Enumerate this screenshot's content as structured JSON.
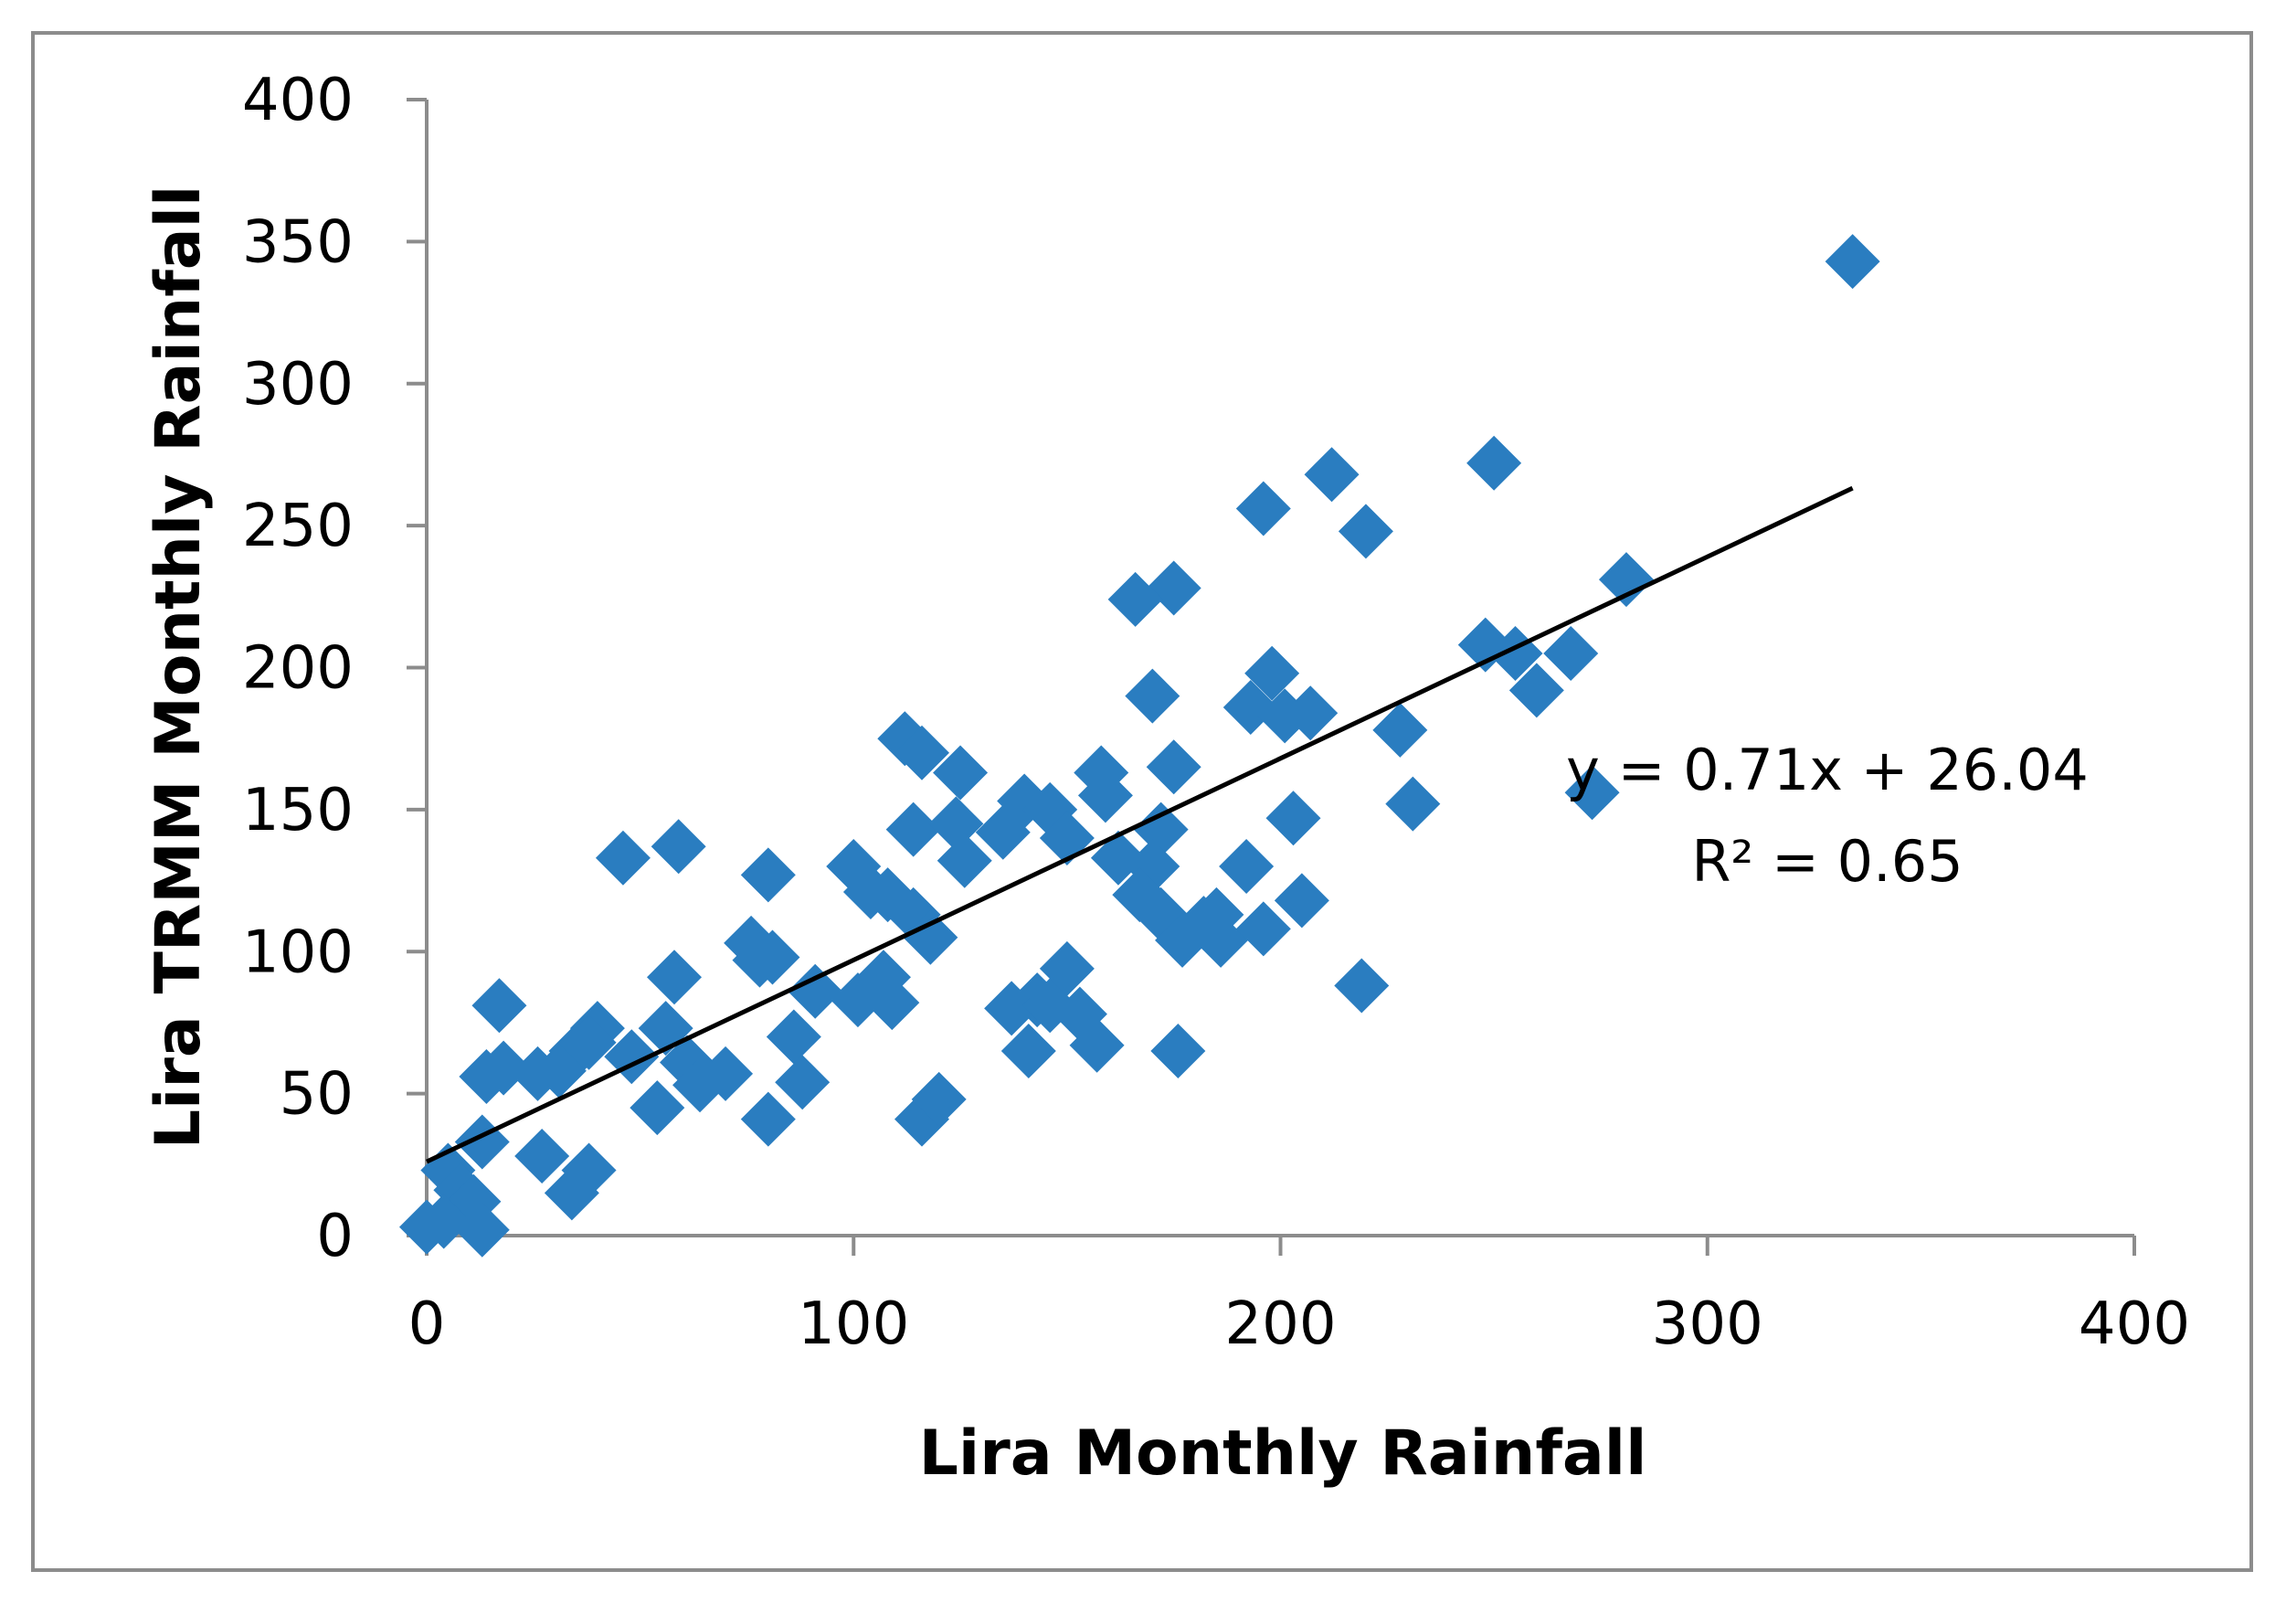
{
  "chart_data": {
    "type": "scatter",
    "xlabel": "Lira Monthly Rainfall",
    "ylabel": "Lira TRMM Monthly Rainfall",
    "xlim": [
      0,
      400
    ],
    "ylim": [
      0,
      400
    ],
    "xticks": [
      "0",
      "100",
      "200",
      "300",
      "400"
    ],
    "yticks": [
      "0",
      "50",
      "100",
      "150",
      "200",
      "250",
      "300",
      "350",
      "400"
    ],
    "grid": false,
    "marker_color": "#2a7dc0",
    "line_color": "#000000",
    "trendline": {
      "slope": 0.71,
      "intercept": 26.04,
      "x_range": [
        0,
        334
      ]
    },
    "equation_text": "y = 0.71x + 26.04",
    "r2_text": "R² = 0.65",
    "points": [
      [
        334,
        343
      ],
      [
        250,
        272
      ],
      [
        212,
        268
      ],
      [
        196,
        256
      ],
      [
        220,
        248
      ],
      [
        281,
        231
      ],
      [
        175,
        228
      ],
      [
        166,
        224
      ],
      [
        248,
        208
      ],
      [
        255,
        205
      ],
      [
        268,
        205
      ],
      [
        260,
        192
      ],
      [
        198,
        198
      ],
      [
        193,
        186
      ],
      [
        201,
        183
      ],
      [
        207,
        184
      ],
      [
        170,
        190
      ],
      [
        228,
        178
      ],
      [
        112,
        175
      ],
      [
        116,
        170
      ],
      [
        125,
        163
      ],
      [
        158,
        163
      ],
      [
        159,
        155
      ],
      [
        175,
        165
      ],
      [
        203,
        147
      ],
      [
        231,
        152
      ],
      [
        273,
        156
      ],
      [
        140,
        153
      ],
      [
        146,
        150
      ],
      [
        135,
        142
      ],
      [
        114,
        143
      ],
      [
        124,
        145
      ],
      [
        126,
        132
      ],
      [
        150,
        140
      ],
      [
        172,
        143
      ],
      [
        162,
        133
      ],
      [
        170,
        130
      ],
      [
        59,
        137
      ],
      [
        46,
        133
      ],
      [
        80,
        127
      ],
      [
        100,
        130
      ],
      [
        104,
        121
      ],
      [
        108,
        120
      ],
      [
        114,
        113
      ],
      [
        118,
        105
      ],
      [
        167,
        120
      ],
      [
        172,
        113
      ],
      [
        177,
        104
      ],
      [
        182,
        110
      ],
      [
        186,
        104
      ],
      [
        185,
        113
      ],
      [
        192,
        130
      ],
      [
        196,
        108
      ],
      [
        205,
        118
      ],
      [
        76,
        103
      ],
      [
        81,
        98
      ],
      [
        78,
        97
      ],
      [
        91,
        86
      ],
      [
        101,
        83
      ],
      [
        107,
        91
      ],
      [
        109,
        82
      ],
      [
        58,
        91
      ],
      [
        137,
        80
      ],
      [
        143,
        83
      ],
      [
        146,
        81
      ],
      [
        150,
        94
      ],
      [
        153,
        78
      ],
      [
        157,
        67
      ],
      [
        176,
        65
      ],
      [
        141,
        65
      ],
      [
        219,
        88
      ],
      [
        17,
        81
      ],
      [
        40,
        73
      ],
      [
        38,
        68
      ],
      [
        35,
        65
      ],
      [
        48,
        63
      ],
      [
        56,
        73
      ],
      [
        61,
        61
      ],
      [
        64,
        53
      ],
      [
        70,
        57
      ],
      [
        31,
        58
      ],
      [
        26,
        57
      ],
      [
        14,
        56
      ],
      [
        18,
        59
      ],
      [
        86,
        70
      ],
      [
        88,
        54
      ],
      [
        54,
        45
      ],
      [
        80,
        41
      ],
      [
        116,
        41
      ],
      [
        120,
        48
      ],
      [
        13,
        33
      ],
      [
        27,
        28
      ],
      [
        38,
        23
      ],
      [
        34,
        15
      ],
      [
        5,
        23
      ],
      [
        8,
        16
      ],
      [
        11,
        12
      ],
      [
        4,
        5
      ],
      [
        13,
        2
      ],
      [
        0,
        3
      ]
    ]
  }
}
